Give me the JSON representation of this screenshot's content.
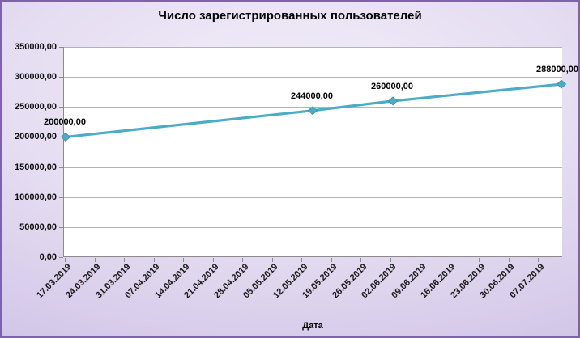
{
  "chart_data": {
    "type": "line",
    "title": "Число зарегистрированных пользователей",
    "xlabel": "Дата",
    "ylabel": "",
    "ylim": [
      0,
      350000
    ],
    "y_tick_step": 50000,
    "y_tick_labels": [
      "350000,00",
      "300000,00",
      "250000,00",
      "200000,00",
      "150000,00",
      "100000,00",
      "50000,00",
      "0,00"
    ],
    "x_tick_labels": [
      "17.03.2019",
      "24.03.2019",
      "31.03.2019",
      "07.04.2019",
      "14.04.2019",
      "21.04.2019",
      "28.04.2019",
      "05.05.2019",
      "12.05.2019",
      "19.05.2019",
      "26.05.2019",
      "02.06.2019",
      "09.06.2019",
      "16.06.2019",
      "23.06.2019",
      "30.06.2019",
      "07.07.2019"
    ],
    "grid": "horizontal",
    "legend": "none",
    "series": [
      {
        "name": "Число зарегистрированных пользователей",
        "marker": "diamond",
        "points": [
          {
            "x_frac": 0.0032,
            "value": 200000,
            "label": "200000,00"
          },
          {
            "x_frac": 0.4984,
            "value": 244000,
            "label": "244000,00"
          },
          {
            "x_frac": 0.6591,
            "value": 260000,
            "label": "260000,00"
          },
          {
            "x_frac": 0.9968,
            "value": 288000,
            "label": "288000,00"
          }
        ]
      }
    ],
    "colors": {
      "line": "#4BACC6",
      "marker_fill": "#4BACC6",
      "marker_edge": "#3891AB",
      "plot_background": "#FFFFFF",
      "gridline": "#B3B3B3",
      "axis_line": "#8A8A8A",
      "chart_border": "#7E63AB",
      "background_center": "#F2EEF9",
      "background_edge": "#C8BAE0",
      "text": "#000000"
    }
  }
}
